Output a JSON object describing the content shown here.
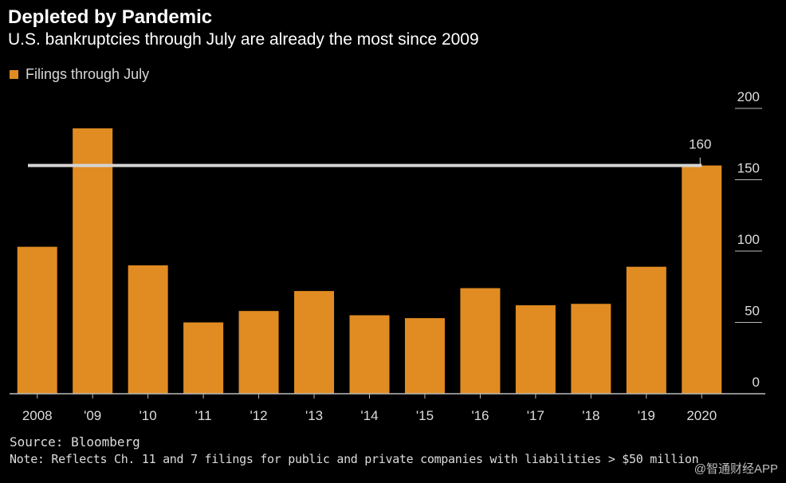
{
  "chart_data": {
    "type": "bar",
    "title": "Depleted by Pandemic",
    "subtitle": "U.S. bankruptcies through July are already the most since 2009",
    "legend": [
      "Filings through July"
    ],
    "categories": [
      "2008",
      "'09",
      "'10",
      "'11",
      "'12",
      "'13",
      "'14",
      "'15",
      "'16",
      "'17",
      "'18",
      "'19",
      "2020"
    ],
    "series": [
      {
        "name": "Filings through July",
        "values": [
          103,
          186,
          90,
          50,
          58,
          72,
          55,
          53,
          74,
          62,
          63,
          89,
          160
        ]
      }
    ],
    "reference_line": {
      "value": 160,
      "label": "160"
    },
    "yticks": [
      0,
      50,
      100,
      150,
      200
    ],
    "ylim": [
      0,
      200
    ],
    "y_axis_position": "right",
    "xlabel": "",
    "ylabel": "",
    "colors": {
      "bar": "#e08c22",
      "reference_line": "#d4d4d4",
      "axis": "#bbbbbb",
      "text": "#dddddd"
    }
  },
  "footer": {
    "source": "Source: Bloomberg",
    "note": "Note: Reflects Ch. 11 and 7 filings for public and private companies with liabilities > $50 million",
    "watermark": "@智通财经APP"
  }
}
